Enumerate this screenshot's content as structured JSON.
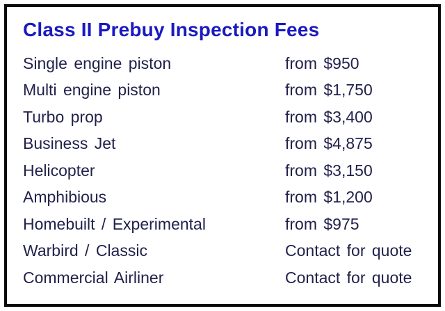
{
  "table": {
    "title": "Class II Prebuy Inspection Fees",
    "rows": [
      {
        "label": "Single engine piston",
        "value": "from $950"
      },
      {
        "label": "Multi engine piston",
        "value": "from $1,750"
      },
      {
        "label": "Turbo prop",
        "value": "from $3,400"
      },
      {
        "label": "Business Jet",
        "value": "from $4,875"
      },
      {
        "label": "Helicopter",
        "value": "from $3,150"
      },
      {
        "label": "Amphibious",
        "value": "from $1,200"
      },
      {
        "label": "Homebuilt / Experimental",
        "value": "from $975"
      },
      {
        "label": "Warbird / Classic",
        "value": "Contact for quote"
      },
      {
        "label": "Commercial Airliner",
        "value": "Contact for quote"
      }
    ]
  },
  "colors": {
    "title_blue": "#1a1ac0",
    "text_navy": "#21214b",
    "border_black": "#0a0a0a",
    "background": "#ffffff"
  }
}
